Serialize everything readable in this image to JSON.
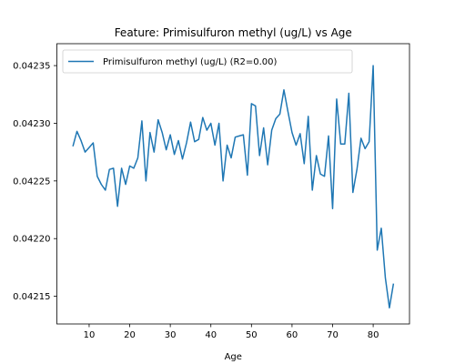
{
  "chart_data": {
    "type": "line",
    "title": "Feature: Primisulfuron methyl (ug/L) vs Age",
    "xlabel": "Age",
    "ylabel": "",
    "xlim": [
      2.05,
      88.95
    ],
    "ylim": [
      0.042126,
      0.042369
    ],
    "xticks": [
      10,
      20,
      30,
      40,
      50,
      60,
      70,
      80
    ],
    "yticks": [
      0.04215,
      0.0422,
      0.04225,
      0.0423,
      0.04235
    ],
    "ytick_labels": [
      "0.04215",
      "0.04220",
      "0.04225",
      "0.04230",
      "0.04235"
    ],
    "grid": false,
    "legend_position": "top-left",
    "series": [
      {
        "name": "Primisulfuron methyl (ug/L) (R2=0.00)",
        "color": "#1f77b4",
        "x": [
          6,
          7,
          8,
          9,
          10,
          11,
          12,
          13,
          14,
          15,
          16,
          17,
          18,
          19,
          20,
          21,
          22,
          23,
          24,
          25,
          26,
          27,
          28,
          29,
          30,
          31,
          32,
          33,
          34,
          35,
          36,
          37,
          38,
          39,
          40,
          41,
          42,
          43,
          44,
          45,
          46,
          47,
          48,
          49,
          50,
          51,
          52,
          53,
          54,
          55,
          56,
          57,
          58,
          59,
          60,
          61,
          62,
          63,
          64,
          65,
          66,
          67,
          68,
          69,
          70,
          71,
          72,
          73,
          74,
          75,
          76,
          77,
          78,
          79,
          80,
          81,
          82,
          83,
          84,
          85
        ],
        "y": [
          0.04228,
          0.042293,
          0.042285,
          0.042275,
          0.042279,
          0.042283,
          0.042254,
          0.042247,
          0.042242,
          0.04226,
          0.042261,
          0.042228,
          0.042261,
          0.042247,
          0.042263,
          0.042261,
          0.04227,
          0.042302,
          0.04225,
          0.042292,
          0.042275,
          0.042303,
          0.042292,
          0.042277,
          0.04229,
          0.042273,
          0.042285,
          0.042269,
          0.042283,
          0.042301,
          0.042284,
          0.042286,
          0.042305,
          0.042294,
          0.0423,
          0.042281,
          0.0423,
          0.04225,
          0.042281,
          0.04227,
          0.042288,
          0.042289,
          0.04229,
          0.042255,
          0.042317,
          0.042315,
          0.042272,
          0.042296,
          0.042264,
          0.042294,
          0.042304,
          0.042308,
          0.042329,
          0.04231,
          0.042292,
          0.042281,
          0.042291,
          0.042265,
          0.042306,
          0.042242,
          0.042272,
          0.042256,
          0.042254,
          0.042289,
          0.042226,
          0.042321,
          0.042282,
          0.042282,
          0.042326,
          0.04224,
          0.04226,
          0.042287,
          0.042278,
          0.042284,
          0.04235,
          0.04219,
          0.042209,
          0.042166,
          0.04214,
          0.042161
        ]
      }
    ]
  }
}
